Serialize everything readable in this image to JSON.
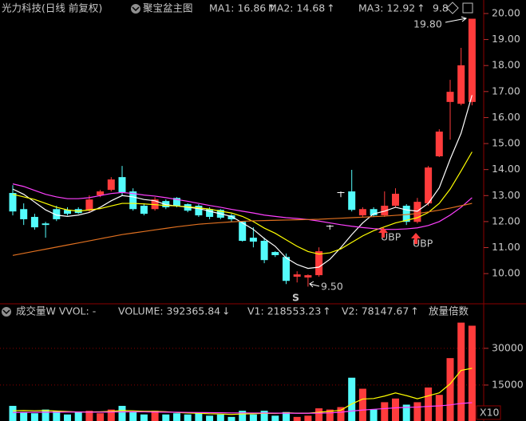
{
  "chart_data": [
    {
      "type": "candlestick",
      "title": "光力科技(日线 前复权)",
      "subtitle": "聚宝盆主图",
      "header_note": "9.8",
      "open": [
        13.1,
        12.48,
        12.18,
        11.93,
        12.48,
        12.45,
        12.48,
        12.42,
        13.01,
        13.22,
        13.71,
        13.16,
        12.61,
        12.48,
        12.79,
        12.91,
        12.67,
        12.61,
        12.48,
        12.45,
        12.24,
        11.99,
        11.38,
        11.26,
        10.83,
        10.64,
        9.88,
        9.85,
        9.94,
        11.84,
        13.13,
        13.16,
        12.24,
        12.48,
        12.24,
        12.61,
        12.61,
        11.99,
        12.7,
        14.51,
        16.6,
        16.53,
        16.6
      ],
      "close": [
        12.39,
        12.09,
        11.78,
        11.87,
        12.09,
        12.3,
        12.33,
        12.85,
        13.16,
        13.62,
        13.13,
        12.48,
        12.3,
        12.85,
        12.55,
        12.61,
        12.42,
        12.24,
        12.18,
        12.15,
        12.09,
        11.26,
        11.23,
        10.52,
        10.71,
        9.72,
        9.97,
        9.94,
        10.86,
        11.84,
        13.13,
        12.45,
        12.48,
        12.24,
        12.61,
        13.07,
        11.99,
        12.76,
        14.08,
        15.46,
        16.99,
        18.01,
        19.8
      ],
      "high": [
        13.4,
        12.7,
        12.3,
        11.99,
        12.61,
        12.55,
        12.55,
        13.01,
        13.22,
        13.71,
        14.14,
        13.28,
        12.7,
        12.94,
        12.85,
        12.94,
        12.7,
        12.67,
        12.55,
        12.48,
        12.3,
        12.02,
        11.78,
        11.38,
        10.86,
        10.77,
        10.09,
        9.97,
        11.01,
        11.87,
        13.16,
        13.99,
        12.55,
        12.55,
        13.16,
        13.28,
        12.67,
        12.91,
        14.14,
        15.55,
        17.45,
        18.68,
        19.8
      ],
      "low": [
        12.24,
        11.87,
        11.69,
        11.38,
        12.02,
        12.24,
        12.3,
        12.36,
        12.94,
        13.16,
        13.01,
        12.42,
        12.24,
        12.42,
        12.48,
        12.55,
        12.36,
        12.18,
        12.09,
        12.09,
        11.99,
        11.23,
        11.01,
        10.4,
        10.64,
        9.6,
        9.66,
        9.5,
        9.88,
        11.69,
        12.94,
        12.39,
        12.18,
        12.18,
        12.18,
        12.55,
        11.87,
        11.93,
        12.61,
        14.48,
        15.15,
        16.47,
        16.47
      ],
      "up_color": "#ff3c3c",
      "down_color": "#54fcfc",
      "flat_color": "#ffffff",
      "ylim": [
        8.87,
        20.52
      ],
      "yticks": [
        {
          "value": 20,
          "label": "20.00"
        },
        {
          "value": 19,
          "label": "19.00"
        },
        {
          "value": 18,
          "label": "18.00"
        },
        {
          "value": 17,
          "label": "17.00"
        },
        {
          "value": 16,
          "label": "16.00"
        },
        {
          "value": 15,
          "label": "15.00"
        },
        {
          "value": 14,
          "label": "14.00"
        },
        {
          "value": 13,
          "label": "13.00"
        },
        {
          "value": 12,
          "label": "12.00"
        },
        {
          "value": 11,
          "label": "11.00"
        },
        {
          "value": 10,
          "label": "10.00"
        }
      ],
      "lines": [
        {
          "name": "MA1: 16.86",
          "arrow": "↑",
          "color": "#ffffff",
          "values": [
            13.25,
            13.05,
            12.75,
            12.45,
            12.25,
            12.2,
            12.25,
            12.35,
            12.55,
            12.8,
            13.0,
            12.95,
            12.85,
            12.8,
            12.65,
            12.6,
            12.55,
            12.5,
            12.4,
            12.3,
            12.2,
            11.95,
            11.7,
            11.35,
            11.05,
            10.6,
            10.35,
            10.2,
            10.25,
            10.55,
            11.0,
            11.5,
            11.95,
            12.3,
            12.4,
            12.55,
            12.45,
            12.4,
            12.7,
            13.3,
            14.4,
            15.4,
            16.86
          ]
        },
        {
          "name": "MA2: 14.68",
          "arrow": "↑",
          "color": "#ffff00",
          "values": [
            13.05,
            12.95,
            12.85,
            12.7,
            12.55,
            12.45,
            12.4,
            12.45,
            12.5,
            12.6,
            12.7,
            12.7,
            12.68,
            12.65,
            12.62,
            12.6,
            12.57,
            12.53,
            12.48,
            12.4,
            12.33,
            12.2,
            12.0,
            11.75,
            11.55,
            11.3,
            11.05,
            10.85,
            10.75,
            10.8,
            10.95,
            11.2,
            11.45,
            11.65,
            11.8,
            11.95,
            12.05,
            12.15,
            12.35,
            12.7,
            13.25,
            13.95,
            14.68
          ]
        },
        {
          "name": "MA3: 12.92",
          "arrow": "↑",
          "color": "#ff40ff",
          "values": [
            13.45,
            13.35,
            13.2,
            13.05,
            12.95,
            12.88,
            12.88,
            12.92,
            13.0,
            13.08,
            13.12,
            13.08,
            13.02,
            12.98,
            12.92,
            12.85,
            12.78,
            12.7,
            12.62,
            12.55,
            12.47,
            12.4,
            12.33,
            12.25,
            12.2,
            12.15,
            12.12,
            12.08,
            12.02,
            11.95,
            11.88,
            11.82,
            11.77,
            11.73,
            11.7,
            11.7,
            11.72,
            11.76,
            11.85,
            12.0,
            12.25,
            12.55,
            12.92
          ]
        },
        {
          "color": "#e07020",
          "values": [
            10.7,
            10.78,
            10.86,
            10.94,
            11.02,
            11.1,
            11.18,
            11.26,
            11.34,
            11.42,
            11.5,
            11.56,
            11.62,
            11.68,
            11.74,
            11.8,
            11.85,
            11.9,
            11.93,
            11.96,
            11.99,
            12.01,
            12.03,
            12.04,
            12.05,
            12.06,
            12.07,
            12.08,
            12.09,
            12.11,
            12.13,
            12.15,
            12.17,
            12.19,
            12.21,
            12.24,
            12.27,
            12.31,
            12.37,
            12.44,
            12.52,
            12.61,
            12.7
          ]
        }
      ],
      "annotations": [
        "19.80",
        "9.50",
        "S",
        "UBP",
        "UBP"
      ]
    },
    {
      "type": "volume",
      "title": "成交量W VVOL: -",
      "volume_label": "VOLUME: 392365.84",
      "volume_arrow": "↓",
      "note": "放量倍数",
      "unit_label": "X10",
      "values": [
        6500,
        4000,
        3500,
        5000,
        4500,
        3000,
        4000,
        4500,
        3500,
        5000,
        6500,
        4000,
        3000,
        4500,
        3000,
        3500,
        3000,
        3500,
        2500,
        3000,
        2000,
        4500,
        3000,
        4500,
        2500,
        4000,
        2000,
        2500,
        5500,
        5000,
        6000,
        18000,
        13500,
        5000,
        8000,
        9500,
        7000,
        8000,
        14000,
        11000,
        26000,
        40500,
        39237
      ],
      "ylim": [
        0,
        42000
      ],
      "yticks": [
        15000,
        30000
      ],
      "grid": true,
      "lines": [
        {
          "name": "V1: 218553.23",
          "arrow": "↑",
          "color": "#ffffff",
          "values": [
            4500,
            4600,
            4500,
            4600,
            4400,
            4200,
            4000,
            4000,
            4100,
            4300,
            4600,
            4500,
            4300,
            4300,
            4100,
            3800,
            3600,
            3500,
            3300,
            3200,
            3000,
            3200,
            3300,
            3500,
            3400,
            3700,
            3500,
            3500,
            3900,
            4300,
            4700,
            7300,
            9300,
            9500,
            10500,
            11800,
            10700,
            9400,
            10600,
            11800,
            15500,
            21000,
            21855
          ]
        },
        {
          "name": "V2: 78147.67",
          "arrow": "↑",
          "color": "#ff40ff",
          "values": [
            3800,
            3850,
            3900,
            3900,
            3950,
            4000,
            4000,
            3950,
            3950,
            4000,
            4050,
            4100,
            4050,
            4000,
            3950,
            3900,
            3850,
            3800,
            3750,
            3700,
            3650,
            3650,
            3600,
            3600,
            3550,
            3550,
            3500,
            3500,
            3550,
            3650,
            3900,
            4400,
            4800,
            5100,
            5400,
            5700,
            5900,
            6000,
            6300,
            6500,
            6900,
            7500,
            7815
          ]
        }
      ]
    }
  ]
}
